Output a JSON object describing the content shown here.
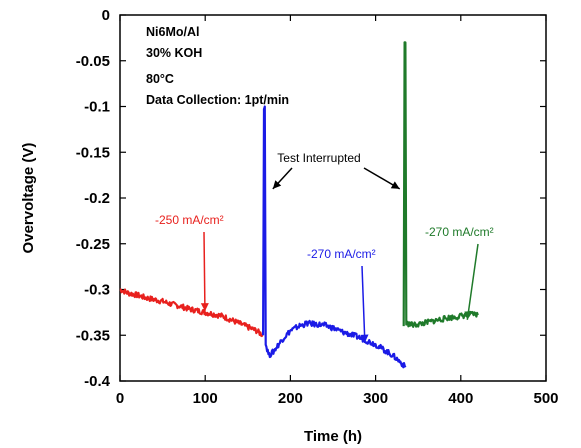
{
  "chart_data": {
    "type": "line",
    "xlabel": "Time (h)",
    "ylabel": "Overvoltage (V)",
    "xlim": [
      0,
      500
    ],
    "ylim": [
      -0.4,
      0
    ],
    "x_ticks": [
      "0",
      "100",
      "200",
      "300",
      "400",
      "500"
    ],
    "y_ticks": [
      "0",
      "-0.05",
      "-0.1",
      "-0.15",
      "-0.2",
      "-0.25",
      "-0.3",
      "-0.35",
      "-0.4"
    ],
    "grid": false,
    "info_lines": [
      "Ni6Mo/Al",
      "30% KOH",
      "80°C",
      "Data Collection: 1pt/min"
    ],
    "series": [
      {
        "label": "-250 mA/cm²",
        "color": "#e8211e",
        "points": [
          [
            0,
            -0.3
          ],
          [
            10,
            -0.304
          ],
          [
            20,
            -0.306
          ],
          [
            30,
            -0.309
          ],
          [
            40,
            -0.311
          ],
          [
            50,
            -0.313
          ],
          [
            60,
            -0.316
          ],
          [
            70,
            -0.318
          ],
          [
            80,
            -0.321
          ],
          [
            90,
            -0.323
          ],
          [
            100,
            -0.325
          ],
          [
            110,
            -0.327
          ],
          [
            120,
            -0.329
          ],
          [
            130,
            -0.333
          ],
          [
            140,
            -0.337
          ],
          [
            150,
            -0.341
          ],
          [
            160,
            -0.345
          ],
          [
            168,
            -0.35
          ]
        ]
      },
      {
        "label": "-270 mA/cm²",
        "color": "#1b1be6",
        "points": [
          [
            168,
            -0.35
          ],
          [
            169,
            -0.1
          ],
          [
            170,
            -0.1
          ],
          [
            171,
            -0.36
          ],
          [
            175,
            -0.372
          ],
          [
            180,
            -0.368
          ],
          [
            190,
            -0.355
          ],
          [
            200,
            -0.345
          ],
          [
            210,
            -0.34
          ],
          [
            220,
            -0.337
          ],
          [
            230,
            -0.338
          ],
          [
            240,
            -0.339
          ],
          [
            250,
            -0.342
          ],
          [
            260,
            -0.346
          ],
          [
            270,
            -0.349
          ],
          [
            280,
            -0.352
          ],
          [
            290,
            -0.356
          ],
          [
            300,
            -0.36
          ],
          [
            310,
            -0.366
          ],
          [
            320,
            -0.372
          ],
          [
            330,
            -0.38
          ],
          [
            335,
            -0.385
          ]
        ]
      },
      {
        "label": "-270 mA/cm²",
        "color": "#1f7a2a",
        "points": [
          [
            333,
            -0.34
          ],
          [
            334,
            -0.03
          ],
          [
            335,
            -0.03
          ],
          [
            336,
            -0.337
          ],
          [
            345,
            -0.339
          ],
          [
            355,
            -0.337
          ],
          [
            365,
            -0.335
          ],
          [
            375,
            -0.333
          ],
          [
            385,
            -0.331
          ],
          [
            395,
            -0.33
          ],
          [
            405,
            -0.328
          ],
          [
            415,
            -0.327
          ],
          [
            420,
            -0.328
          ]
        ]
      }
    ],
    "annotations": [
      {
        "text": "-250 mA/cm²",
        "color": "#e8211e",
        "arrow_to": [
          95,
          -0.315
        ]
      },
      {
        "text": "-270 mA/cm²",
        "color": "#1b1be6",
        "arrow_to": [
          278,
          -0.345
        ]
      },
      {
        "text": "-270 mA/cm²",
        "color": "#1f7a2a",
        "arrow_to": [
          410,
          -0.32
        ]
      },
      {
        "text": "Test Interrupted",
        "color": "#000000",
        "arrows_to": [
          [
            170,
            -0.19
          ],
          [
            333,
            -0.19
          ]
        ]
      }
    ]
  }
}
